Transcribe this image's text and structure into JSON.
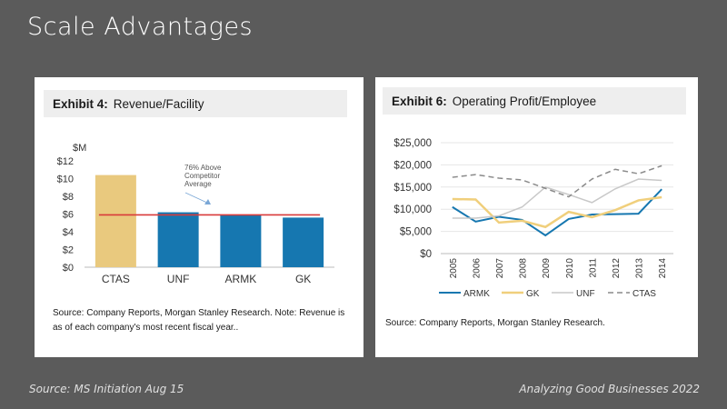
{
  "slide": {
    "title": "Scale Advantages",
    "footer_left": "Source: MS Initiation Aug 15",
    "footer_right": "Analyzing Good Businesses 2022"
  },
  "colors": {
    "background": "#5b5b5b",
    "ctas_bar": "#e9c97e",
    "bar": "#1677b0",
    "avg_line": "#d93a3a",
    "armk": "#1677b0",
    "gk": "#f0cf7c",
    "unf": "#c8c8c8",
    "ctas": "#8a8a8a"
  },
  "exhibit4": {
    "label": "Exhibit 4:",
    "title": "Revenue/Facility",
    "source": "Source: Company Reports, Morgan Stanley Research. Note: Revenue is as of each company's most recent fiscal year.."
  },
  "exhibit6": {
    "label": "Exhibit 6:",
    "title": "Operating Profit/Employee",
    "source": "Source: Company Reports, Morgan Stanley Research."
  },
  "chart_data": [
    {
      "type": "bar",
      "title": "Exhibit 4: Revenue/Facility",
      "unit_label": "$M",
      "categories": [
        "CTAS",
        "UNF",
        "ARMK",
        "GK"
      ],
      "values": [
        10.4,
        6.2,
        5.9,
        5.6
      ],
      "ylim": [
        0,
        12
      ],
      "yticks": [
        "$0",
        "$2",
        "$4",
        "$6",
        "$8",
        "$10",
        "$12"
      ],
      "reference_line": 5.9,
      "annotation": [
        "76% Above",
        "Competitor",
        "Average"
      ]
    },
    {
      "type": "line",
      "title": "Exhibit 6: Operating Profit/Employee",
      "x": [
        "2005",
        "2006",
        "2007",
        "2008",
        "2009",
        "2010",
        "2011",
        "2012",
        "2013",
        "2014"
      ],
      "ylim": [
        0,
        25000
      ],
      "yticks": [
        "$0",
        "$5,000",
        "$10,000",
        "$15,000",
        "$20,000",
        "$25,000"
      ],
      "series": [
        {
          "name": "ARMK",
          "values": [
            10500,
            7200,
            8300,
            7600,
            4100,
            7800,
            8800,
            8900,
            9000,
            14500
          ]
        },
        {
          "name": "GK",
          "values": [
            12300,
            12200,
            7000,
            7400,
            6000,
            9400,
            8200,
            9800,
            12000,
            12700
          ]
        },
        {
          "name": "UNF",
          "values": [
            8000,
            8000,
            8500,
            10500,
            15000,
            13300,
            11500,
            14600,
            16800,
            16500
          ]
        },
        {
          "name": "CTAS",
          "values": [
            17200,
            17800,
            17000,
            16600,
            14700,
            12800,
            16800,
            19000,
            18000,
            19800
          ]
        }
      ]
    }
  ]
}
